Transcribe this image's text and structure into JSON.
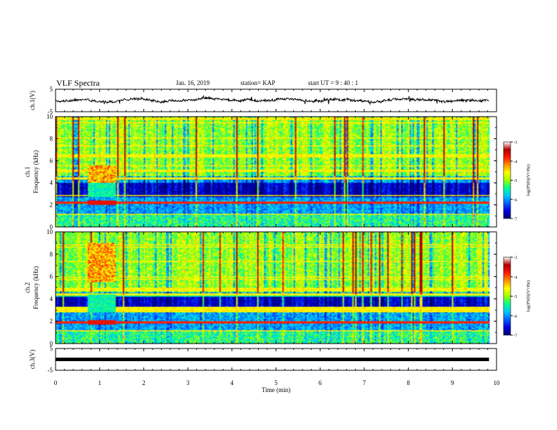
{
  "header": {
    "title": "VLF Spectra",
    "date": "Jan. 16, 2019",
    "station": "station= KAP",
    "start_ut": "start UT =  9 : 40 : 1"
  },
  "colors": {
    "trace": "#000000",
    "frame": "#000000",
    "colormap": [
      "#000070",
      "#0000dd",
      "#0060ff",
      "#00c8ff",
      "#00ff90",
      "#a0ff00",
      "#ffff00",
      "#ff9000",
      "#ff1800",
      "#b00000",
      "#ffffff"
    ]
  },
  "chart_data": [
    {
      "type": "line",
      "name": "ch1-waveform",
      "ylabel": "ch.1(V)",
      "ylim": [
        -5,
        5
      ],
      "yticks": [
        "5",
        "-5"
      ],
      "xlim": [
        0,
        10
      ],
      "x_data_extent_min": [
        0,
        9.83
      ],
      "y_mean": 0.1,
      "y_range_approx": [
        -1.6,
        2.0
      ],
      "grid": false
    },
    {
      "type": "heatmap",
      "name": "ch1-spectrogram",
      "ylabel": "ch.1\nFrequency (kHz)",
      "ylim": [
        0,
        10
      ],
      "yticks": [
        "0",
        "2",
        "4",
        "6",
        "8",
        "10"
      ],
      "xlim": [
        0,
        10
      ],
      "x_data_extent_min": [
        0,
        9.83
      ],
      "colorbar": {
        "label": "log(PSD)(V²/Hz)",
        "ticks": [
          "-3",
          "-4",
          "-5",
          "-6",
          "-7"
        ],
        "range": [
          -7,
          -3
        ]
      },
      "features": {
        "upper_band_khz": [
          4.6,
          10
        ],
        "dark_band_khz": [
          2.7,
          4.0
        ],
        "line_khz": 2.2,
        "event_interval_min": [
          0.72,
          1.35
        ],
        "event_band_khz": [
          4.0,
          5.6
        ]
      }
    },
    {
      "type": "heatmap",
      "name": "ch2-spectrogram",
      "ylabel": "ch.2\nFrequency (kHz)",
      "ylim": [
        0,
        10
      ],
      "yticks": [
        "0",
        "2",
        "4",
        "6",
        "8",
        "10"
      ],
      "xlim": [
        0,
        10
      ],
      "x_data_extent_min": [
        0,
        9.83
      ],
      "colorbar": {
        "label": "log(PSD)(V²/Hz)",
        "ticks": [
          "-3",
          "-4",
          "-5",
          "-6",
          "-7"
        ],
        "range": [
          -7,
          -3
        ]
      },
      "features": {
        "upper_band_khz": [
          4.6,
          10
        ],
        "dark_band_khz": [
          2.8,
          4.4
        ],
        "line_khz": 1.9,
        "event_interval_min": [
          0.72,
          1.35
        ],
        "event_band_khz": [
          5.5,
          9.0
        ]
      }
    },
    {
      "type": "line",
      "name": "ch3-waveform",
      "ylabel": "ch.3(V)",
      "ylim": [
        -5,
        5
      ],
      "yticks": [
        "5",
        "-5"
      ],
      "xlim": [
        0,
        10
      ],
      "x_data_extent_min": [
        0,
        9.83
      ],
      "y_constant": 0,
      "xlabel": "Time (min)",
      "xticks": [
        "0",
        "1",
        "2",
        "3",
        "4",
        "5",
        "6",
        "7",
        "8",
        "9",
        "10"
      ],
      "grid": false
    }
  ]
}
